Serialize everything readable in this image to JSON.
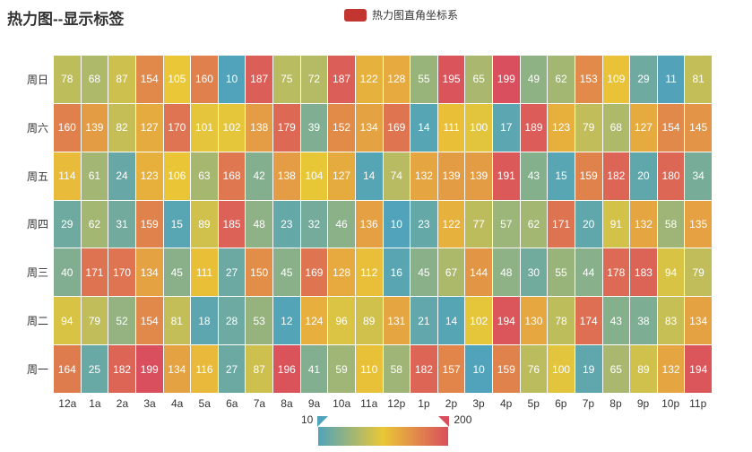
{
  "title": "热力图--显示标签",
  "legend": {
    "label": "热力图直角坐标系",
    "color": "#c23531"
  },
  "chart_data": {
    "type": "heatmap",
    "title": "热力图--显示标签",
    "legend_entries": [
      "热力图直角坐标系"
    ],
    "x_categories": [
      "12a",
      "1a",
      "2a",
      "3a",
      "4a",
      "5a",
      "6a",
      "7a",
      "8a",
      "9a",
      "10a",
      "11a",
      "12p",
      "1p",
      "2p",
      "3p",
      "4p",
      "5p",
      "6p",
      "7p",
      "8p",
      "9p",
      "10p",
      "11p"
    ],
    "y_categories": [
      "周日",
      "周六",
      "周五",
      "周四",
      "周三",
      "周二",
      "周一"
    ],
    "rows": [
      [
        78,
        68,
        87,
        154,
        105,
        160,
        10,
        187,
        75,
        72,
        187,
        122,
        128,
        55,
        195,
        65,
        199,
        49,
        62,
        153,
        109,
        29,
        11,
        81
      ],
      [
        160,
        139,
        82,
        127,
        170,
        101,
        102,
        138,
        179,
        39,
        152,
        134,
        169,
        14,
        111,
        100,
        17,
        189,
        123,
        79,
        68,
        127,
        154,
        145
      ],
      [
        114,
        61,
        24,
        123,
        106,
        63,
        168,
        42,
        138,
        104,
        127,
        14,
        74,
        132,
        139,
        139,
        191,
        43,
        15,
        159,
        182,
        20,
        180,
        34
      ],
      [
        29,
        62,
        31,
        159,
        15,
        89,
        185,
        48,
        23,
        32,
        46,
        136,
        10,
        23,
        122,
        77,
        57,
        62,
        171,
        20,
        91,
        132,
        58,
        135
      ],
      [
        40,
        171,
        170,
        134,
        45,
        111,
        27,
        150,
        45,
        169,
        128,
        112,
        16,
        45,
        67,
        144,
        48,
        30,
        55,
        44,
        178,
        183,
        94,
        79
      ],
      [
        94,
        79,
        52,
        154,
        81,
        18,
        28,
        53,
        12,
        124,
        96,
        89,
        131,
        21,
        14,
        102,
        194,
        130,
        78,
        174,
        43,
        38,
        83,
        134
      ],
      [
        164,
        25,
        182,
        199,
        134,
        116,
        27,
        87,
        196,
        41,
        59,
        110,
        58,
        182,
        157,
        10,
        159,
        76,
        100,
        19,
        65,
        89,
        132,
        194
      ]
    ],
    "visual_map": {
      "min": 10,
      "max": 200,
      "min_label": "10",
      "max_label": "200",
      "colors": [
        "#50a3ba",
        "#eac736",
        "#d94e5d"
      ],
      "orientation": "horizontal",
      "position": "bottom-center"
    },
    "grid_gap": true,
    "label_color": "#ffffff"
  }
}
